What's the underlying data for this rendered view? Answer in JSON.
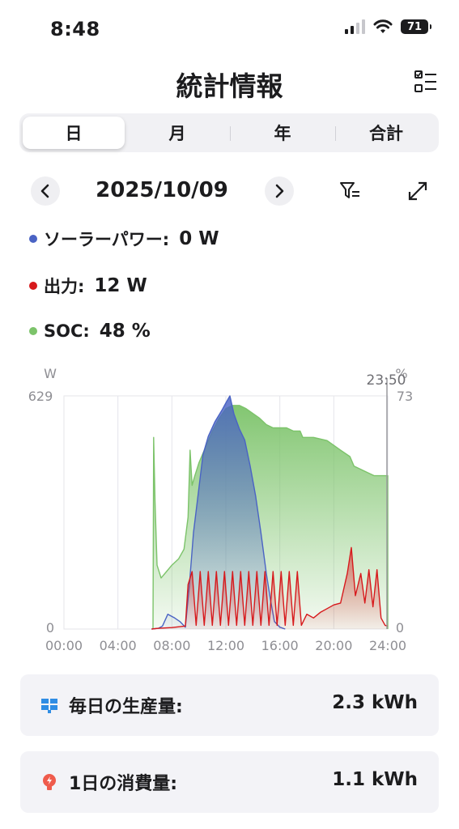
{
  "status": {
    "time": "8:48",
    "battery": "71"
  },
  "header": {
    "title": "統計情報"
  },
  "tabs": [
    {
      "label": "日",
      "active": true
    },
    {
      "label": "月",
      "active": false
    },
    {
      "label": "年",
      "active": false
    },
    {
      "label": "合計",
      "active": false
    }
  ],
  "date_nav": {
    "date": "2025/10/09",
    "prev_icon": "chevron-left-icon",
    "next_icon": "chevron-right-icon"
  },
  "legend": [
    {
      "name": "ソーラーパワー:",
      "value": "0 W",
      "color": "#4a63c4"
    },
    {
      "name": "出力:",
      "value": "12 W",
      "color": "#d7191c"
    },
    {
      "name": "SOC:",
      "value": "48 %",
      "color": "#7cc36a"
    }
  ],
  "chart_data": {
    "type": "area",
    "x_ticks": [
      "00:00",
      "04:00",
      "08:00",
      "12:00",
      "16:00",
      "20:00",
      "24:00"
    ],
    "y_left": {
      "unit": "W",
      "range": [
        0,
        629
      ],
      "ticks": [
        "629",
        "0"
      ]
    },
    "y_right": {
      "unit": "%",
      "range": [
        0,
        73
      ],
      "ticks": [
        "73",
        "0"
      ]
    },
    "cursor_label": "23:50",
    "grid": "vertical",
    "series": [
      {
        "axis": "right",
        "color": "#7cc36a",
        "points": [
          [
            6.6,
            0
          ],
          [
            6.65,
            60
          ],
          [
            6.75,
            40
          ],
          [
            6.9,
            20
          ],
          [
            7.2,
            16
          ],
          [
            7.6,
            18
          ],
          [
            8,
            20
          ],
          [
            8.5,
            22
          ],
          [
            8.9,
            25
          ],
          [
            9.2,
            35
          ],
          [
            9.35,
            56
          ],
          [
            9.5,
            45
          ],
          [
            9.7,
            48
          ],
          [
            10,
            52
          ],
          [
            10.5,
            57
          ],
          [
            11,
            62
          ],
          [
            11.5,
            66
          ],
          [
            12,
            69
          ],
          [
            12.5,
            70
          ],
          [
            13,
            70
          ],
          [
            13.5,
            69
          ],
          [
            14.5,
            66
          ],
          [
            15,
            64
          ],
          [
            15.5,
            63
          ],
          [
            16.5,
            63
          ],
          [
            17,
            62
          ],
          [
            17.5,
            62
          ],
          [
            17.7,
            60
          ],
          [
            18.5,
            60
          ],
          [
            19.5,
            59
          ],
          [
            20.5,
            56
          ],
          [
            21.2,
            54
          ],
          [
            21.5,
            51
          ],
          [
            22,
            50
          ],
          [
            22.5,
            49
          ],
          [
            23,
            48
          ],
          [
            23.5,
            48
          ],
          [
            24,
            48
          ],
          [
            24,
            0
          ]
        ]
      },
      {
        "axis": "left",
        "color": "#4a63c4",
        "points": [
          [
            6.5,
            0
          ],
          [
            7.0,
            2
          ],
          [
            7.3,
            8
          ],
          [
            7.7,
            40
          ],
          [
            8.2,
            30
          ],
          [
            8.6,
            20
          ],
          [
            9,
            5
          ],
          [
            9.3,
            120
          ],
          [
            9.6,
            260
          ],
          [
            10,
            380
          ],
          [
            10.3,
            470
          ],
          [
            10.7,
            520
          ],
          [
            11.2,
            560
          ],
          [
            11.7,
            590
          ],
          [
            12,
            610
          ],
          [
            12.3,
            629
          ],
          [
            12.6,
            580
          ],
          [
            13,
            540
          ],
          [
            13.4,
            510
          ],
          [
            13.8,
            440
          ],
          [
            14.2,
            360
          ],
          [
            14.6,
            260
          ],
          [
            15,
            150
          ],
          [
            15.3,
            80
          ],
          [
            15.6,
            20
          ],
          [
            16,
            5
          ],
          [
            16.4,
            0
          ]
        ]
      },
      {
        "axis": "left",
        "color": "#d7191c",
        "points": [
          [
            6.5,
            0
          ],
          [
            7,
            2
          ],
          [
            8,
            4
          ],
          [
            9,
            8
          ],
          [
            9.2,
            120
          ],
          [
            9.5,
            155
          ],
          [
            9.8,
            10
          ],
          [
            10.1,
            155
          ],
          [
            10.4,
            10
          ],
          [
            10.7,
            155
          ],
          [
            11,
            10
          ],
          [
            11.3,
            155
          ],
          [
            11.6,
            10
          ],
          [
            11.9,
            155
          ],
          [
            12.2,
            10
          ],
          [
            12.5,
            155
          ],
          [
            12.8,
            10
          ],
          [
            13.1,
            155
          ],
          [
            13.4,
            10
          ],
          [
            13.7,
            155
          ],
          [
            14,
            10
          ],
          [
            14.3,
            155
          ],
          [
            14.6,
            10
          ],
          [
            14.9,
            155
          ],
          [
            15.2,
            10
          ],
          [
            15.5,
            155
          ],
          [
            15.8,
            10
          ],
          [
            16.1,
            155
          ],
          [
            16.4,
            10
          ],
          [
            16.7,
            155
          ],
          [
            17,
            10
          ],
          [
            17.3,
            155
          ],
          [
            17.6,
            10
          ],
          [
            18,
            40
          ],
          [
            18.5,
            30
          ],
          [
            19,
            45
          ],
          [
            19.5,
            55
          ],
          [
            20,
            65
          ],
          [
            20.5,
            70
          ],
          [
            21,
            150
          ],
          [
            21.3,
            220
          ],
          [
            21.6,
            90
          ],
          [
            22,
            150
          ],
          [
            22.3,
            70
          ],
          [
            22.6,
            160
          ],
          [
            22.9,
            60
          ],
          [
            23.2,
            160
          ],
          [
            23.5,
            30
          ],
          [
            23.8,
            10
          ],
          [
            24,
            8
          ]
        ]
      }
    ]
  },
  "summary": [
    {
      "label": "毎日の生産量:",
      "value": "2.3 kWh",
      "icon": "solar-panel-icon"
    },
    {
      "label": "1日の消費量:",
      "value": "1.1 kWh",
      "icon": "lightbulb-icon"
    }
  ]
}
